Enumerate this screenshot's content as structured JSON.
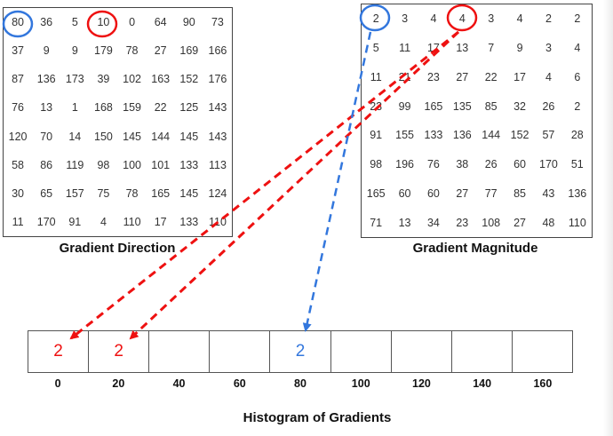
{
  "colors": {
    "red": "#ee1111",
    "blue": "#3377dd"
  },
  "direction": {
    "caption": "Gradient Direction",
    "rows": [
      [
        "80",
        "36",
        "5",
        "10",
        "0",
        "64",
        "90",
        "73"
      ],
      [
        "37",
        "9",
        "9",
        "179",
        "78",
        "27",
        "169",
        "166"
      ],
      [
        "87",
        "136",
        "173",
        "39",
        "102",
        "163",
        "152",
        "176"
      ],
      [
        "76",
        "13",
        "1",
        "168",
        "159",
        "22",
        "125",
        "143"
      ],
      [
        "120",
        "70",
        "14",
        "150",
        "145",
        "144",
        "145",
        "143"
      ],
      [
        "58",
        "86",
        "119",
        "98",
        "100",
        "101",
        "133",
        "113"
      ],
      [
        "30",
        "65",
        "157",
        "75",
        "78",
        "165",
        "145",
        "124"
      ],
      [
        "11",
        "170",
        "91",
        "4",
        "110",
        "17",
        "133",
        "110"
      ]
    ]
  },
  "magnitude": {
    "caption": "Gradient Magnitude",
    "rows": [
      [
        "2",
        "3",
        "4",
        "4",
        "3",
        "4",
        "2",
        "2"
      ],
      [
        "5",
        "11",
        "17",
        "13",
        "7",
        "9",
        "3",
        "4"
      ],
      [
        "11",
        "21",
        "23",
        "27",
        "22",
        "17",
        "4",
        "6"
      ],
      [
        "23",
        "99",
        "165",
        "135",
        "85",
        "32",
        "26",
        "2"
      ],
      [
        "91",
        "155",
        "133",
        "136",
        "144",
        "152",
        "57",
        "28"
      ],
      [
        "98",
        "196",
        "76",
        "38",
        "26",
        "60",
        "170",
        "51"
      ],
      [
        "165",
        "60",
        "60",
        "27",
        "77",
        "85",
        "43",
        "136"
      ],
      [
        "71",
        "13",
        "34",
        "23",
        "108",
        "27",
        "48",
        "110"
      ]
    ]
  },
  "histogram": {
    "caption": "Histogram of Gradients",
    "bin_labels": [
      "0",
      "20",
      "40",
      "60",
      "80",
      "100",
      "120",
      "140",
      "160"
    ],
    "bins": [
      {
        "value": "2",
        "color": "red"
      },
      {
        "value": "2",
        "color": "red"
      },
      {
        "value": "",
        "color": ""
      },
      {
        "value": "",
        "color": ""
      },
      {
        "value": "2",
        "color": "blue"
      },
      {
        "value": "",
        "color": ""
      },
      {
        "value": "",
        "color": ""
      },
      {
        "value": "",
        "color": ""
      },
      {
        "value": "",
        "color": ""
      }
    ]
  },
  "highlights": [
    {
      "from": "direction cell 80",
      "to": "magnitude cell 2",
      "color": "blue"
    },
    {
      "from": "direction cell 10",
      "to": "magnitude cell 4",
      "color": "red"
    }
  ]
}
